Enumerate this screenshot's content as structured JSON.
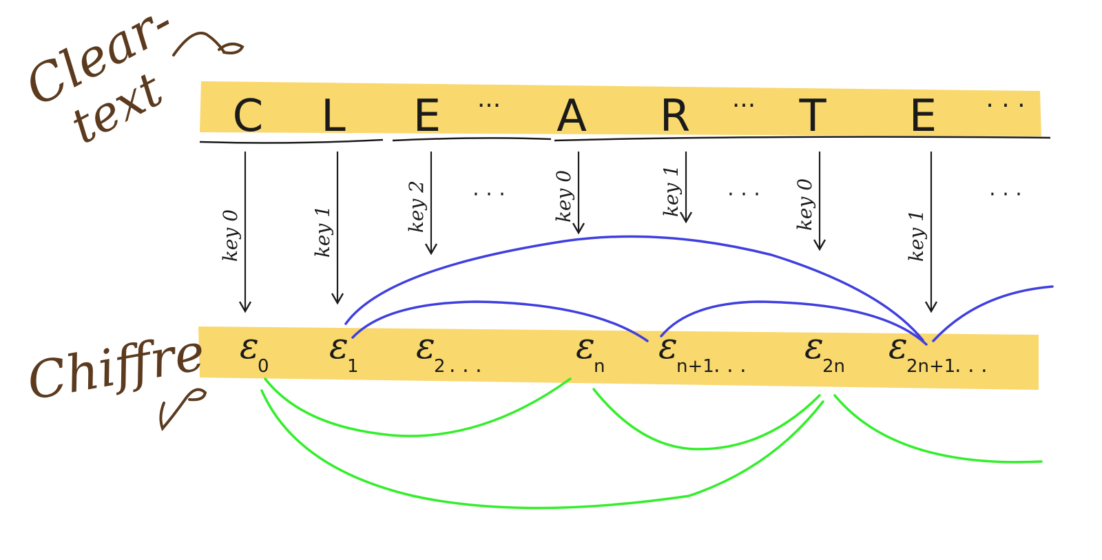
{
  "labels": {
    "cleartext": [
      "Clear-",
      "text"
    ],
    "chiffre": "Chiffre"
  },
  "cleartext_letters": [
    "C",
    "L",
    "E",
    "···",
    "A",
    "R",
    "···",
    "T",
    "E",
    "· · ·"
  ],
  "keys": [
    "key 0",
    "key 1",
    "key 2",
    "· · ·",
    "key 0",
    "key 1",
    "· · ·",
    "key 0",
    "key 1",
    "· · ·"
  ],
  "cipher_letters": [
    {
      "base": "ε",
      "sub": "0"
    },
    {
      "base": "ε",
      "sub": "1"
    },
    {
      "base": "ε",
      "sub": "2",
      "trail": " . . ."
    },
    {
      "base": "ε",
      "sub": "n"
    },
    {
      "base": "ε",
      "sub": "n+1",
      "trail": " . . ."
    },
    {
      "base": "ε",
      "sub": "2n"
    },
    {
      "base": "ε",
      "sub": "2n+1",
      "trail": " . . ."
    }
  ],
  "colors": {
    "highlight": "#f9d86e",
    "brown_ink": "#5b3a1e",
    "blue_arc": "#3f3fdf",
    "green_arc": "#33ee2a",
    "black_ink": "#1a1a1a"
  }
}
